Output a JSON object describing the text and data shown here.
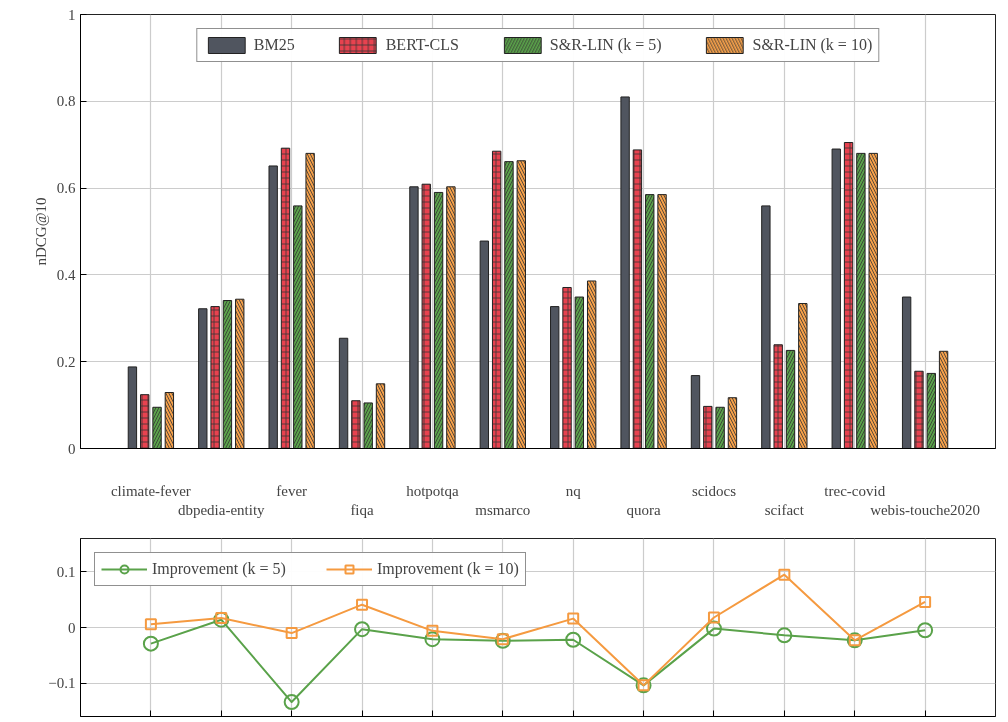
{
  "chart_data": [
    {
      "type": "bar",
      "ylabel": "nDCG@10",
      "categories": [
        "climate-fever",
        "dbpedia-entity",
        "fever",
        "fiqa",
        "hotpotqa",
        "msmarco",
        "nq",
        "quora",
        "scidocs",
        "scifact",
        "trec-covid",
        "webis-touche2020"
      ],
      "series": [
        {
          "name": "BM25",
          "color": "#50555f",
          "values": [
            0.188,
            0.322,
            0.651,
            0.254,
            0.603,
            0.478,
            0.327,
            0.81,
            0.168,
            0.559,
            0.69,
            0.349
          ]
        },
        {
          "name": "BERT-CLS",
          "color": "#e8424f",
          "values": [
            0.124,
            0.327,
            0.692,
            0.11,
            0.609,
            0.685,
            0.371,
            0.688,
            0.097,
            0.239,
            0.705,
            0.178
          ]
        },
        {
          "name": "S&R-LIN (k = 5)",
          "color": "#5aa24a",
          "values": [
            0.095,
            0.341,
            0.559,
            0.105,
            0.59,
            0.661,
            0.349,
            0.585,
            0.095,
            0.226,
            0.68,
            0.173
          ]
        },
        {
          "name": "S&R-LIN (k = 10)",
          "color": "#f5a04a",
          "values": [
            0.129,
            0.344,
            0.68,
            0.149,
            0.603,
            0.663,
            0.386,
            0.585,
            0.117,
            0.334,
            0.68,
            0.224
          ]
        }
      ],
      "ylim": [
        0,
        1
      ],
      "yticks": [
        0,
        0.2,
        0.4,
        0.6,
        0.8,
        1
      ],
      "grid": true,
      "legend": "top"
    },
    {
      "type": "line",
      "categories": [
        null,
        null,
        null,
        null,
        null,
        null,
        null,
        null,
        null,
        null,
        null,
        null
      ],
      "series": [
        {
          "name": "Improvement (k = 5)",
          "color": "#5aa24a",
          "marker": "circle",
          "values": [
            -0.029,
            0.014,
            -0.134,
            -0.003,
            -0.021,
            -0.024,
            -0.022,
            -0.104,
            -0.002,
            -0.014,
            -0.023,
            -0.005
          ]
        },
        {
          "name": "Improvement (k = 10)",
          "color": "#f59a40",
          "marker": "square",
          "values": [
            0.006,
            0.017,
            -0.01,
            0.041,
            -0.006,
            -0.021,
            0.016,
            -0.104,
            0.018,
            0.095,
            -0.023,
            0.046
          ]
        }
      ],
      "ylim": [
        -0.16,
        0.16
      ],
      "yticks": [
        {
          "value": -0.1,
          "label": "−0.1"
        },
        0,
        0.1
      ],
      "grid": true,
      "legend": "top left",
      "tick_labels": "y",
      "line_style": "solid"
    }
  ]
}
